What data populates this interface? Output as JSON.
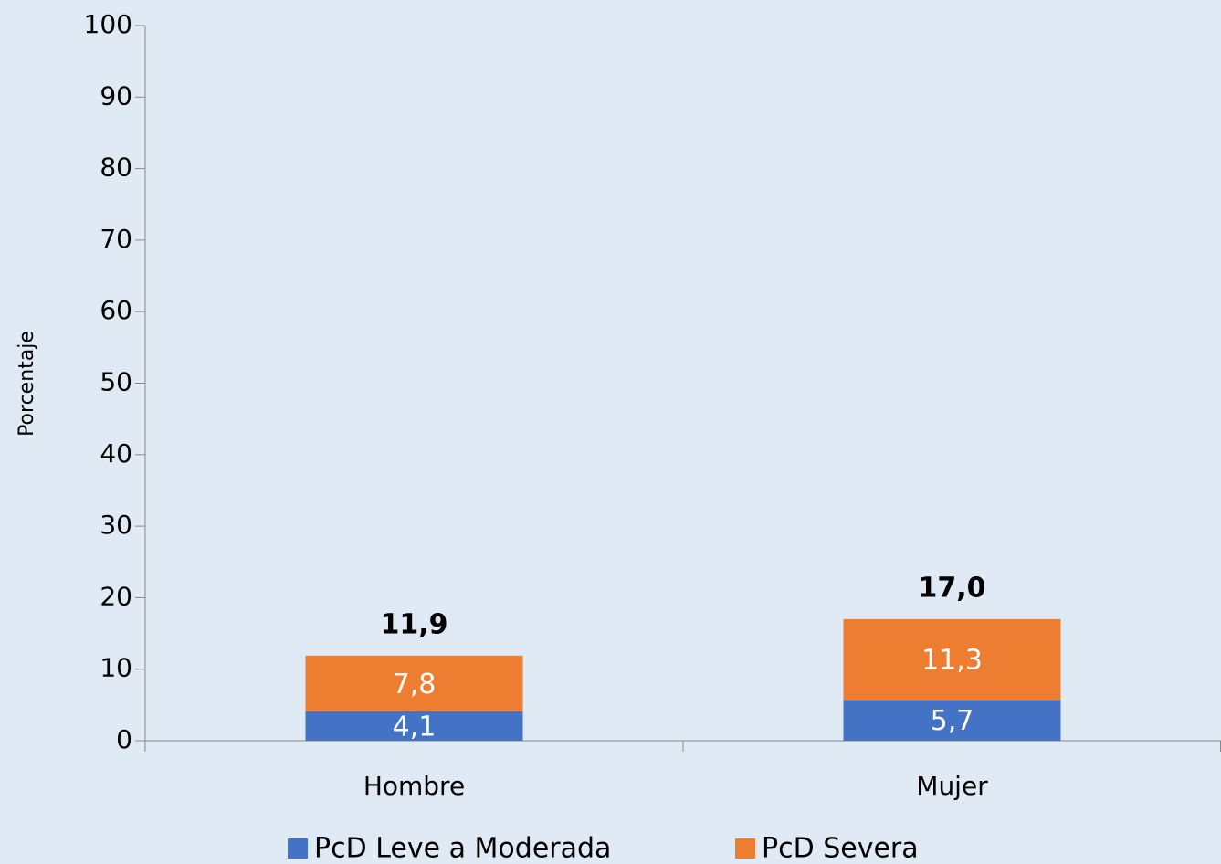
{
  "chart_data": {
    "type": "stacked_bar",
    "y_label": "Porcentaje",
    "categories": [
      "Hombre",
      "Mujer"
    ],
    "series": [
      {
        "name": "PcD Leve a Moderada",
        "color": "#4472c4",
        "values": [
          4.1,
          5.7
        ],
        "value_labels": [
          "4,1",
          "5,7"
        ]
      },
      {
        "name": "PcD Severa",
        "color": "#ed7d31",
        "values": [
          7.8,
          11.3
        ],
        "value_labels": [
          "7,8",
          "11,3"
        ]
      }
    ],
    "totals": [
      11.9,
      17.0
    ],
    "total_labels": [
      "11,9",
      "17,0"
    ],
    "ylim": [
      0,
      100
    ],
    "yticks": [
      0,
      10,
      20,
      30,
      40,
      50,
      60,
      70,
      80,
      90,
      100
    ],
    "legend": "bottom"
  }
}
